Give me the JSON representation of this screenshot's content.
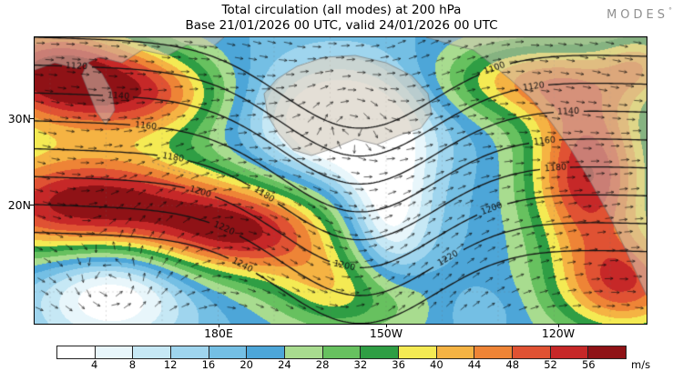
{
  "header": {
    "title": "Total circulation (all modes) at 200 hPa",
    "subtitle": "Base 21/01/2026 00 UTC, valid 24/01/2026 00 UTC"
  },
  "logo": {
    "text": "MODES",
    "mark": "°"
  },
  "chart_data": {
    "type": "heatmap",
    "title": "Total circulation (all modes) at 200 hPa",
    "base_time": "21/01/2026 00 UTC",
    "valid_time": "24/01/2026 00 UTC",
    "level": "200 hPa",
    "variable": "wind speed of total circulation (all modes), shaded",
    "units": "m/s",
    "colorbar_ticks": [
      4,
      8,
      12,
      16,
      20,
      24,
      28,
      32,
      36,
      40,
      44,
      48,
      52,
      56
    ],
    "colorbar_colors": [
      "#ffffff",
      "#e8f6fb",
      "#c6e8f5",
      "#9fd5ee",
      "#74bfe4",
      "#4da6d8",
      "#a8dc8f",
      "#67c15f",
      "#2f9e44",
      "#f4ea53",
      "#f5b343",
      "#ee8436",
      "#e05233",
      "#c62828",
      "#8f1216"
    ],
    "contour_levels": [
      1100,
      1120,
      1140,
      1160,
      1180,
      1200,
      1220,
      1240
    ],
    "contour_description": "black solid contours labeled 1100-1240 with inline labels",
    "lat_ticks": [
      "30N",
      "20N"
    ],
    "lon_ticks": [
      "180E",
      "150W",
      "120W"
    ],
    "overlays": [
      "black streamline wind arrows",
      "gray/tan land masses (Siberia, Alaska, Aleutians, North America)",
      "faint dashed lat-lon graticule"
    ],
    "legend_position": "bottom",
    "shading_range_ms": [
      0,
      58
    ]
  }
}
